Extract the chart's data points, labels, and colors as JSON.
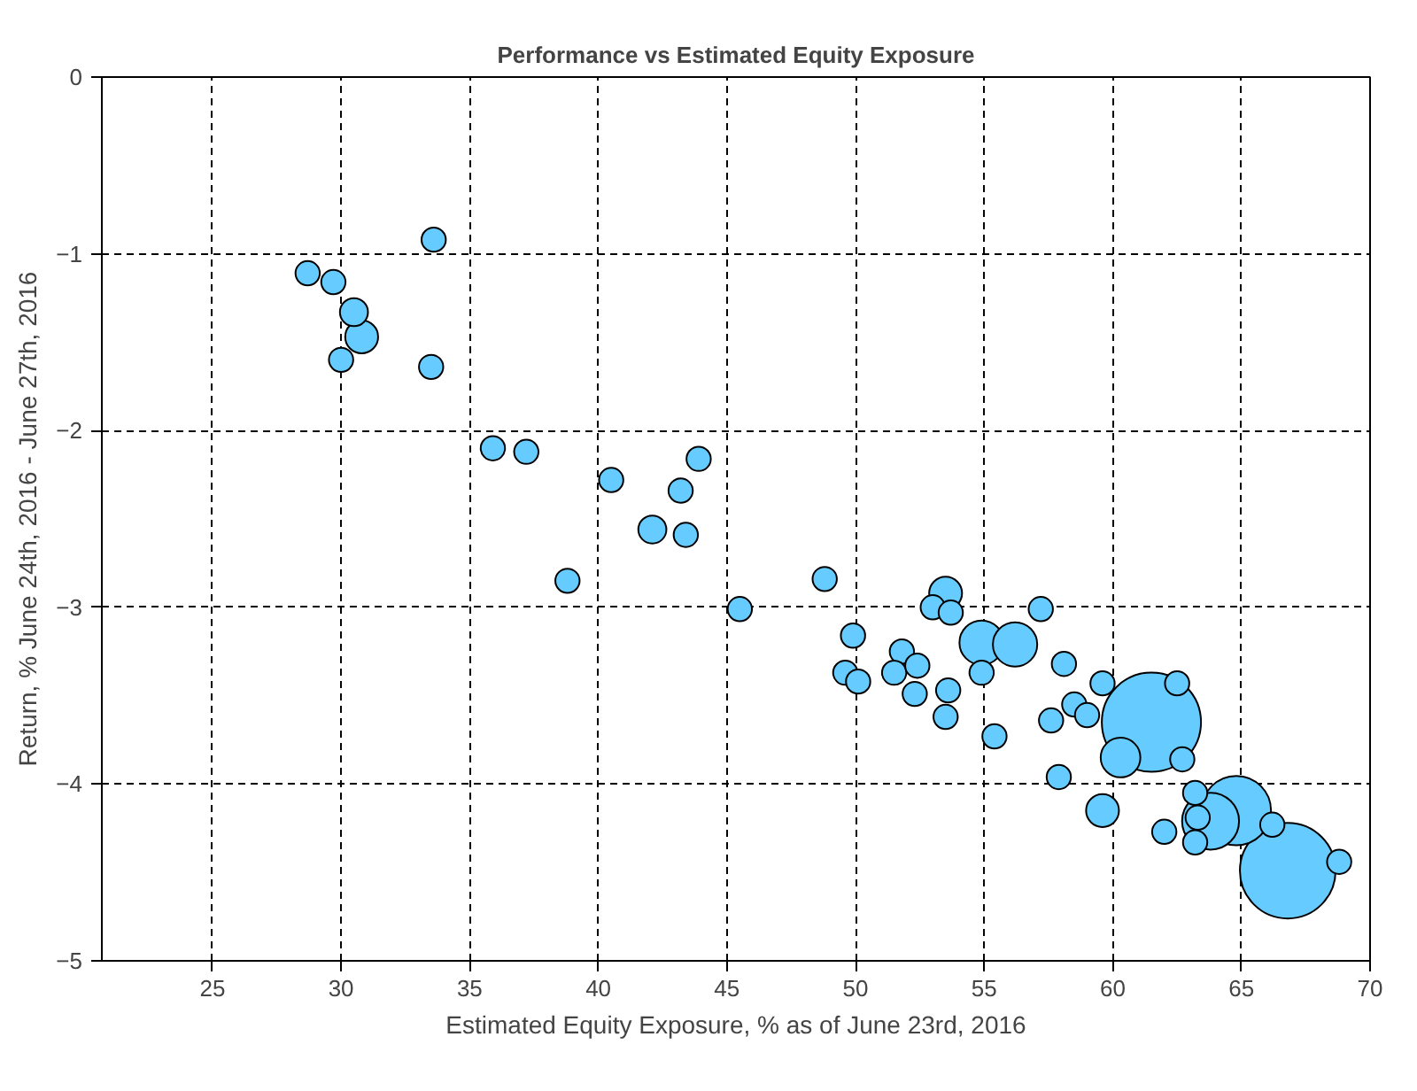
{
  "chart_data": {
    "type": "bubble",
    "title": "Performance vs Estimated Equity Exposure",
    "xlabel": "Estimated Equity Exposure, % as of June 23rd, 2016",
    "ylabel": "Return, % June 24th, 2016 - June 27th, 2016",
    "xlim": [
      20.7,
      70
    ],
    "ylim": [
      -5,
      0
    ],
    "xticks": [
      25,
      30,
      35,
      40,
      45,
      50,
      55,
      60,
      65,
      70
    ],
    "yticks": [
      -5,
      -4,
      -3,
      -2,
      -1,
      0
    ],
    "grid": true,
    "series": [
      {
        "color": "#66ccff",
        "x": [
          28.7,
          29.7,
          30.5,
          30.8,
          30.0,
          33.6,
          33.5,
          35.9,
          37.2,
          40.5,
          43.9,
          43.2,
          42.1,
          43.4,
          38.8,
          45.5,
          48.8,
          49.9,
          49.6,
          50.1,
          51.8,
          51.5,
          52.4,
          52.3,
          53.6,
          53.5,
          53.0,
          53.7,
          53.5,
          54.9,
          56.2,
          54.9,
          55.4,
          57.2,
          58.1,
          59.6,
          58.5,
          59.0,
          57.6,
          62.5,
          60.3,
          62.7,
          57.9,
          59.6,
          62.0,
          63.2,
          63.3,
          63.2,
          61.5,
          63.8,
          64.8,
          66.2,
          66.8,
          68.8
        ],
        "values": [
          -1.11,
          -1.16,
          -1.33,
          -1.47,
          -1.6,
          -0.92,
          -1.64,
          -2.1,
          -2.12,
          -2.28,
          -2.16,
          -2.34,
          -2.56,
          -2.59,
          -2.85,
          -3.01,
          -2.84,
          -3.16,
          -3.37,
          -3.42,
          -3.25,
          -3.37,
          -3.33,
          -3.49,
          -3.47,
          -3.62,
          -3.0,
          -3.03,
          -2.92,
          -3.2,
          -3.21,
          -3.37,
          -3.73,
          -3.01,
          -3.32,
          -3.43,
          -3.55,
          -3.61,
          -3.64,
          -3.43,
          -3.85,
          -3.86,
          -3.96,
          -4.15,
          -4.27,
          -4.05,
          -4.19,
          -4.33,
          -3.65,
          -4.21,
          -4.15,
          -4.23,
          -4.49,
          -4.44
        ],
        "sizes": [
          0.06,
          0.06,
          0.08,
          0.11,
          0.06,
          0.06,
          0.06,
          0.06,
          0.06,
          0.06,
          0.06,
          0.06,
          0.08,
          0.06,
          0.06,
          0.06,
          0.06,
          0.06,
          0.06,
          0.06,
          0.06,
          0.06,
          0.06,
          0.06,
          0.06,
          0.06,
          0.06,
          0.06,
          0.11,
          0.2,
          0.2,
          0.06,
          0.06,
          0.06,
          0.06,
          0.06,
          0.06,
          0.06,
          0.06,
          0.06,
          0.16,
          0.06,
          0.06,
          0.11,
          0.06,
          0.06,
          0.06,
          0.06,
          1,
          0.33,
          0.49,
          0.06,
          0.93,
          0.06
        ]
      }
    ]
  }
}
